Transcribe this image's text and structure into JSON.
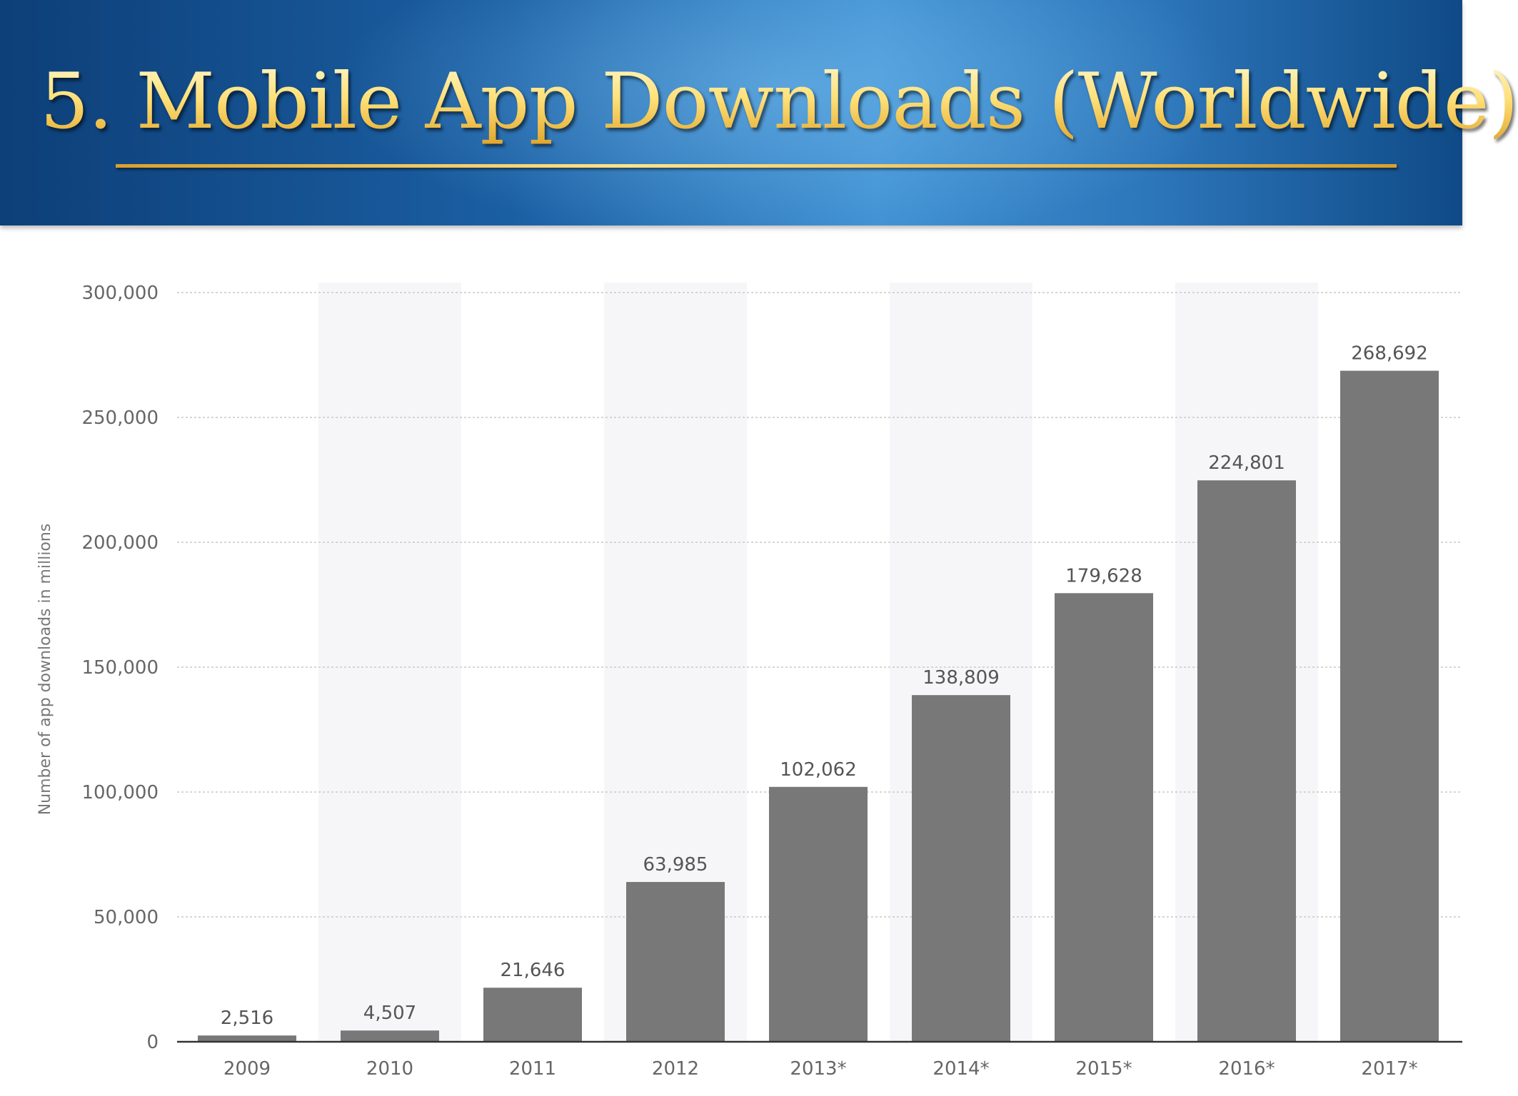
{
  "slide": {
    "title": "5. Mobile App Downloads (Worldwide)",
    "colors": {
      "banner_dark": "#0d3f78",
      "banner_light": "#3f90d2",
      "title_gold": "#ffe38a",
      "bar": "#787878",
      "band": "#f6f6f8",
      "axis_text": "#666666"
    }
  },
  "chart_data": {
    "type": "bar",
    "title": "",
    "xlabel": "",
    "ylabel": "Number of app downloads in millions",
    "categories": [
      "2009",
      "2010",
      "2011",
      "2012",
      "2013*",
      "2014*",
      "2015*",
      "2016*",
      "2017*"
    ],
    "values": [
      2516,
      4507,
      21646,
      63985,
      102062,
      138809,
      179628,
      224801,
      268692
    ],
    "value_labels": [
      "2,516",
      "4,507",
      "21,646",
      "63,985",
      "102,062",
      "138,809",
      "179,628",
      "224,801",
      "268,692"
    ],
    "yticks": [
      0,
      50000,
      100000,
      150000,
      200000,
      250000,
      300000
    ],
    "ytick_labels": [
      "0",
      "50,000",
      "100,000",
      "150,000",
      "200,000",
      "250,000",
      "300,000"
    ],
    "ylim": [
      0,
      300000
    ],
    "grid": true,
    "legend": "none"
  }
}
